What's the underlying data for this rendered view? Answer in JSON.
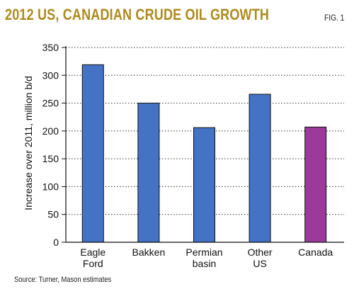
{
  "header": {
    "title": "2012 US, CANADIAN CRUDE OIL GROWTH",
    "fig_label": "FIG. 1"
  },
  "footer": {
    "source": "Source: Turner, Mason estimates"
  },
  "chart_data": {
    "type": "bar",
    "categories": [
      [
        "Eagle",
        "Ford"
      ],
      [
        "Bakken"
      ],
      [
        "Permian",
        "basin"
      ],
      [
        "Other",
        "US"
      ],
      [
        "Canada"
      ]
    ],
    "values": [
      319,
      250,
      206,
      266,
      207
    ],
    "colors": [
      "#4472c4",
      "#4472c4",
      "#4472c4",
      "#4472c4",
      "#9b3a9b"
    ],
    "title": "2012 US, CANADIAN CRUDE OIL GROWTH",
    "xlabel": "",
    "ylabel": "Increase over 2011, million b/d",
    "ylim": [
      0,
      350
    ],
    "yticks": [
      0,
      50,
      100,
      150,
      200,
      250,
      300,
      350
    ],
    "grid": "dotted horizontal"
  }
}
